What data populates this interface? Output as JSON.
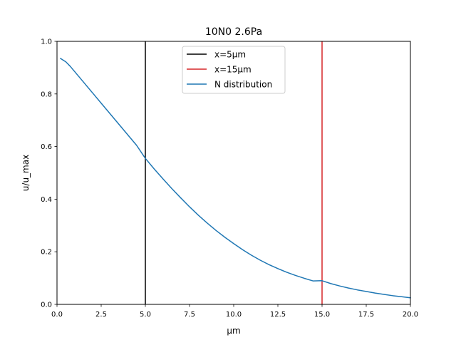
{
  "chart_data": {
    "type": "line",
    "title": "10N0 2.6Pa",
    "xlabel": "μm",
    "ylabel": "u/u_max",
    "xlim": [
      0,
      20
    ],
    "ylim": [
      0,
      1
    ],
    "xticks": [
      0,
      2.5,
      5,
      7.5,
      10,
      12.5,
      15,
      17.5,
      20
    ],
    "xtick_labels": [
      "0.0",
      "2.5",
      "5.0",
      "7.5",
      "10.0",
      "12.5",
      "15.0",
      "17.5",
      "20.0"
    ],
    "yticks": [
      0,
      0.2,
      0.4,
      0.6,
      0.8,
      1.0
    ],
    "ytick_labels": [
      "0.0",
      "0.2",
      "0.4",
      "0.6",
      "0.8",
      "1.0"
    ],
    "grid": false,
    "legend_position": "upper-center",
    "vlines": [
      {
        "name": "x=5μm",
        "x": 5,
        "color": "#000000"
      },
      {
        "name": "x=15μm",
        "x": 15,
        "color": "#d62728"
      }
    ],
    "series": [
      {
        "name": "N distribution",
        "color": "#1f77b4",
        "x": [
          0.2,
          0.5,
          0.75,
          1,
          1.5,
          2,
          2.5,
          3,
          3.5,
          4,
          4.5,
          5,
          5.5,
          6,
          6.5,
          7,
          7.5,
          8,
          8.5,
          9,
          9.5,
          10,
          10.5,
          11,
          11.5,
          12,
          12.5,
          13,
          13.5,
          14,
          14.5,
          15,
          15.5,
          16,
          16.5,
          17,
          17.5,
          18,
          18.5,
          19,
          19.5,
          20
        ],
        "y": [
          0.935,
          0.922,
          0.905,
          0.885,
          0.845,
          0.805,
          0.765,
          0.725,
          0.685,
          0.645,
          0.605,
          0.555,
          0.515,
          0.477,
          0.44,
          0.405,
          0.371,
          0.339,
          0.309,
          0.281,
          0.255,
          0.231,
          0.208,
          0.187,
          0.168,
          0.151,
          0.136,
          0.122,
          0.11,
          0.099,
          0.089,
          0.09,
          0.079,
          0.07,
          0.062,
          0.055,
          0.049,
          0.043,
          0.038,
          0.033,
          0.029,
          0.025
        ]
      }
    ]
  }
}
